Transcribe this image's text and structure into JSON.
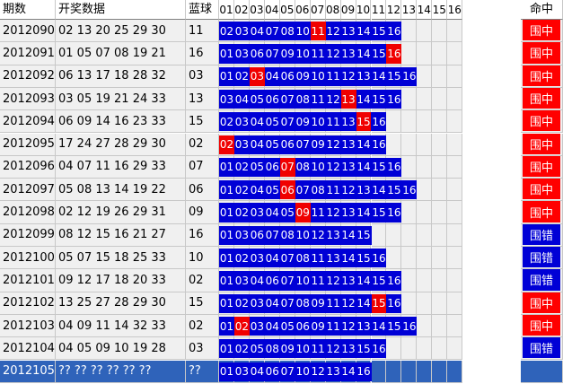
{
  "headers": {
    "period": "期数",
    "numbers": "开奖数据",
    "blue": "蓝球",
    "cols": [
      "01",
      "02",
      "03",
      "04",
      "05",
      "06",
      "07",
      "08",
      "09",
      "10",
      "11",
      "12",
      "13",
      "14",
      "15",
      "16"
    ],
    "result": "命中"
  },
  "colors": {
    "ball_blue": "#0000d6",
    "ball_hit": "#f00000",
    "result_hit": "#ff0000",
    "result_miss": "#0000d6",
    "selected_row": "#2f63ba",
    "grid_bg": "#f0f0f0"
  },
  "rows": [
    {
      "period": "2012090",
      "numbers": "02 13 20 25 29 30",
      "blue": "11",
      "picks": [
        "02",
        "03",
        "04",
        "07",
        "08",
        "10",
        "11",
        "12",
        "13",
        "14",
        "15",
        "16"
      ],
      "hit": "11",
      "result": "围中"
    },
    {
      "period": "2012091",
      "numbers": "01 05 07 08 19 21",
      "blue": "16",
      "picks": [
        "01",
        "03",
        "06",
        "07",
        "09",
        "10",
        "11",
        "12",
        "13",
        "14",
        "15",
        "16"
      ],
      "hit": "16",
      "result": "围中"
    },
    {
      "period": "2012092",
      "numbers": "06 13 17 18 28 32",
      "blue": "03",
      "picks": [
        "01",
        "02",
        "03",
        "04",
        "06",
        "09",
        "10",
        "11",
        "12",
        "13",
        "14",
        "15",
        "16"
      ],
      "hit": "03",
      "result": "围中"
    },
    {
      "period": "2012093",
      "numbers": "03 05 19 21 24 33",
      "blue": "13",
      "picks": [
        "03",
        "04",
        "05",
        "06",
        "07",
        "08",
        "11",
        "12",
        "13",
        "14",
        "15",
        "16"
      ],
      "hit": "13",
      "result": "围中"
    },
    {
      "period": "2012094",
      "numbers": "06 09 14 16 23 33",
      "blue": "15",
      "picks": [
        "02",
        "03",
        "04",
        "05",
        "07",
        "09",
        "10",
        "11",
        "13",
        "15",
        "16"
      ],
      "hit": "15",
      "result": "围中"
    },
    {
      "period": "2012095",
      "numbers": "17 24 27 28 29 30",
      "blue": "02",
      "picks": [
        "02",
        "03",
        "04",
        "05",
        "06",
        "07",
        "09",
        "12",
        "13",
        "14",
        "16"
      ],
      "hit": "02",
      "result": "围中"
    },
    {
      "period": "2012096",
      "numbers": "04 07 11 16 29 33",
      "blue": "07",
      "picks": [
        "01",
        "02",
        "05",
        "06",
        "07",
        "08",
        "10",
        "12",
        "13",
        "14",
        "15",
        "16"
      ],
      "hit": "07",
      "result": "围中"
    },
    {
      "period": "2012097",
      "numbers": "05 08 13 14 19 22",
      "blue": "06",
      "picks": [
        "01",
        "02",
        "04",
        "05",
        "06",
        "07",
        "08",
        "11",
        "12",
        "13",
        "14",
        "15",
        "16"
      ],
      "hit": "06",
      "result": "围中"
    },
    {
      "period": "2012098",
      "numbers": "02 12 19 26 29 31",
      "blue": "09",
      "picks": [
        "01",
        "02",
        "03",
        "04",
        "05",
        "09",
        "11",
        "12",
        "13",
        "14",
        "15",
        "16"
      ],
      "hit": "09",
      "result": "围中"
    },
    {
      "period": "2012099",
      "numbers": "08 12 15 16 21 27",
      "blue": "16",
      "picks": [
        "01",
        "03",
        "06",
        "07",
        "08",
        "10",
        "12",
        "13",
        "14",
        "15"
      ],
      "hit": "",
      "result": "围错"
    },
    {
      "period": "2012100",
      "numbers": "05 07 15 18 25 33",
      "blue": "10",
      "picks": [
        "01",
        "02",
        "03",
        "04",
        "07",
        "08",
        "11",
        "13",
        "14",
        "15",
        "16"
      ],
      "hit": "",
      "result": "围错"
    },
    {
      "period": "2012101",
      "numbers": "09 12 17 18 20 33",
      "blue": "02",
      "picks": [
        "01",
        "03",
        "04",
        "06",
        "07",
        "10",
        "11",
        "12",
        "13",
        "14",
        "15",
        "16"
      ],
      "hit": "",
      "result": "围错"
    },
    {
      "period": "2012102",
      "numbers": "13 25 27 28 29 30",
      "blue": "15",
      "picks": [
        "01",
        "02",
        "03",
        "04",
        "07",
        "08",
        "09",
        "11",
        "12",
        "14",
        "15",
        "16"
      ],
      "hit": "15",
      "result": "围中"
    },
    {
      "period": "2012103",
      "numbers": "04 09 11 14 32 33",
      "blue": "02",
      "picks": [
        "01",
        "02",
        "03",
        "04",
        "05",
        "06",
        "09",
        "11",
        "12",
        "13",
        "14",
        "15",
        "16"
      ],
      "hit": "02",
      "result": "围中"
    },
    {
      "period": "2012104",
      "numbers": "04 05 09 10 19 28",
      "blue": "03",
      "picks": [
        "01",
        "02",
        "05",
        "08",
        "09",
        "10",
        "11",
        "12",
        "13",
        "15",
        "16"
      ],
      "hit": "",
      "result": "围错"
    },
    {
      "period": "2012105",
      "numbers": "?? ?? ?? ?? ?? ??",
      "blue": "??",
      "picks": [
        "01",
        "03",
        "04",
        "06",
        "07",
        "10",
        "12",
        "13",
        "14",
        "16"
      ],
      "hit": "",
      "result": "",
      "selected": true
    }
  ]
}
